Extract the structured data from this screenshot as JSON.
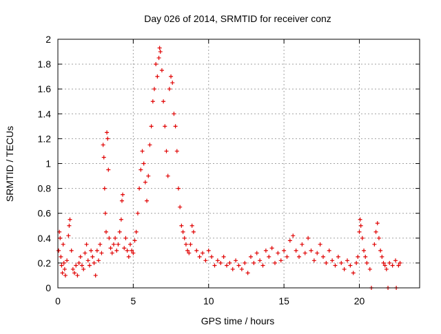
{
  "chart_data": {
    "type": "scatter",
    "title": "Day 026 of 2014, SRMTID for receiver conz",
    "xlabel": "GPS time / hours",
    "ylabel": "SRMTID / TECUs",
    "xlim": [
      0,
      24
    ],
    "ylim": [
      0,
      2
    ],
    "grid": true,
    "marker": "+",
    "color": "#e00000",
    "x_ticks": [
      "0",
      "5",
      "10",
      "15",
      "20"
    ],
    "x_tick_values": [
      0,
      5,
      10,
      15,
      20
    ],
    "y_ticks": [
      "0",
      "0.2",
      "0.4",
      "0.6",
      "0.8",
      "1",
      "1.2",
      "1.4",
      "1.6",
      "1.8",
      "2"
    ],
    "y_tick_values": [
      0,
      0.2,
      0.4,
      0.6,
      0.8,
      1.0,
      1.2,
      1.4,
      1.6,
      1.8,
      2.0
    ],
    "series": [
      {
        "name": "SRMTID",
        "points": [
          [
            0.05,
            0.3
          ],
          [
            0.1,
            0.45
          ],
          [
            0.15,
            0.4
          ],
          [
            0.2,
            0.25
          ],
          [
            0.25,
            0.18
          ],
          [
            0.3,
            0.12
          ],
          [
            0.35,
            0.35
          ],
          [
            0.4,
            0.2
          ],
          [
            0.45,
            0.15
          ],
          [
            0.5,
            0.1
          ],
          [
            0.6,
            0.22
          ],
          [
            0.7,
            0.42
          ],
          [
            0.75,
            0.5
          ],
          [
            0.8,
            0.55
          ],
          [
            0.9,
            0.3
          ],
          [
            1.0,
            0.15
          ],
          [
            1.1,
            0.12
          ],
          [
            1.2,
            0.18
          ],
          [
            1.3,
            0.1
          ],
          [
            1.4,
            0.2
          ],
          [
            1.5,
            0.25
          ],
          [
            1.6,
            0.18
          ],
          [
            1.7,
            0.15
          ],
          [
            1.8,
            0.28
          ],
          [
            1.9,
            0.35
          ],
          [
            2.0,
            0.22
          ],
          [
            2.1,
            0.18
          ],
          [
            2.2,
            0.3
          ],
          [
            2.3,
            0.25
          ],
          [
            2.4,
            0.2
          ],
          [
            2.5,
            0.1
          ],
          [
            2.6,
            0.3
          ],
          [
            2.7,
            0.22
          ],
          [
            2.8,
            0.35
          ],
          [
            2.9,
            0.28
          ],
          [
            3.0,
            1.15
          ],
          [
            3.05,
            1.05
          ],
          [
            3.1,
            0.8
          ],
          [
            3.15,
            0.6
          ],
          [
            3.2,
            0.45
          ],
          [
            3.25,
            1.25
          ],
          [
            3.3,
            1.2
          ],
          [
            3.35,
            0.95
          ],
          [
            3.4,
            0.4
          ],
          [
            3.5,
            0.32
          ],
          [
            3.6,
            0.28
          ],
          [
            3.7,
            0.35
          ],
          [
            3.8,
            0.4
          ],
          [
            3.9,
            0.3
          ],
          [
            4.0,
            0.35
          ],
          [
            4.1,
            0.45
          ],
          [
            4.2,
            0.55
          ],
          [
            4.25,
            0.7
          ],
          [
            4.3,
            0.75
          ],
          [
            4.4,
            0.32
          ],
          [
            4.5,
            0.4
          ],
          [
            4.6,
            0.3
          ],
          [
            4.7,
            0.25
          ],
          [
            4.8,
            0.35
          ],
          [
            4.9,
            0.3
          ],
          [
            5.0,
            0.28
          ],
          [
            5.1,
            0.38
          ],
          [
            5.2,
            0.45
          ],
          [
            5.3,
            0.6
          ],
          [
            5.4,
            0.8
          ],
          [
            5.5,
            0.95
          ],
          [
            5.6,
            1.1
          ],
          [
            5.7,
            1.0
          ],
          [
            5.8,
            0.85
          ],
          [
            5.9,
            0.7
          ],
          [
            6.0,
            0.9
          ],
          [
            6.1,
            1.15
          ],
          [
            6.2,
            1.3
          ],
          [
            6.3,
            1.5
          ],
          [
            6.4,
            1.6
          ],
          [
            6.5,
            1.8
          ],
          [
            6.6,
            1.7
          ],
          [
            6.7,
            1.85
          ],
          [
            6.75,
            1.93
          ],
          [
            6.8,
            1.9
          ],
          [
            6.9,
            1.75
          ],
          [
            7.0,
            1.5
          ],
          [
            7.1,
            1.3
          ],
          [
            7.2,
            1.1
          ],
          [
            7.3,
            0.9
          ],
          [
            7.4,
            1.6
          ],
          [
            7.5,
            1.7
          ],
          [
            7.6,
            1.65
          ],
          [
            7.7,
            1.4
          ],
          [
            7.8,
            1.3
          ],
          [
            7.9,
            1.1
          ],
          [
            8.0,
            0.8
          ],
          [
            8.1,
            0.65
          ],
          [
            8.2,
            0.5
          ],
          [
            8.3,
            0.45
          ],
          [
            8.4,
            0.4
          ],
          [
            8.5,
            0.35
          ],
          [
            8.6,
            0.3
          ],
          [
            8.7,
            0.28
          ],
          [
            8.8,
            0.35
          ],
          [
            8.9,
            0.5
          ],
          [
            9.0,
            0.45
          ],
          [
            9.2,
            0.3
          ],
          [
            9.4,
            0.25
          ],
          [
            9.6,
            0.28
          ],
          [
            9.8,
            0.22
          ],
          [
            10.0,
            0.3
          ],
          [
            10.2,
            0.25
          ],
          [
            10.4,
            0.18
          ],
          [
            10.6,
            0.22
          ],
          [
            10.8,
            0.2
          ],
          [
            11.0,
            0.25
          ],
          [
            11.2,
            0.18
          ],
          [
            11.4,
            0.2
          ],
          [
            11.6,
            0.15
          ],
          [
            11.8,
            0.22
          ],
          [
            12.0,
            0.18
          ],
          [
            12.2,
            0.15
          ],
          [
            12.4,
            0.2
          ],
          [
            12.6,
            0.12
          ],
          [
            12.8,
            0.25
          ],
          [
            13.0,
            0.2
          ],
          [
            13.2,
            0.28
          ],
          [
            13.4,
            0.22
          ],
          [
            13.6,
            0.18
          ],
          [
            13.8,
            0.3
          ],
          [
            14.0,
            0.25
          ],
          [
            14.2,
            0.32
          ],
          [
            14.4,
            0.2
          ],
          [
            14.6,
            0.28
          ],
          [
            14.8,
            0.22
          ],
          [
            15.0,
            0.3
          ],
          [
            15.2,
            0.25
          ],
          [
            15.4,
            0.38
          ],
          [
            15.6,
            0.42
          ],
          [
            15.8,
            0.3
          ],
          [
            16.0,
            0.25
          ],
          [
            16.2,
            0.35
          ],
          [
            16.4,
            0.28
          ],
          [
            16.6,
            0.4
          ],
          [
            16.8,
            0.3
          ],
          [
            17.0,
            0.22
          ],
          [
            17.2,
            0.28
          ],
          [
            17.4,
            0.35
          ],
          [
            17.6,
            0.25
          ],
          [
            17.8,
            0.2
          ],
          [
            18.0,
            0.3
          ],
          [
            18.2,
            0.22
          ],
          [
            18.4,
            0.18
          ],
          [
            18.6,
            0.25
          ],
          [
            18.8,
            0.2
          ],
          [
            19.0,
            0.15
          ],
          [
            19.2,
            0.22
          ],
          [
            19.4,
            0.18
          ],
          [
            19.6,
            0.12
          ],
          [
            19.8,
            0.2
          ],
          [
            19.9,
            0.25
          ],
          [
            20.0,
            0.45
          ],
          [
            20.05,
            0.55
          ],
          [
            20.1,
            0.5
          ],
          [
            20.2,
            0.4
          ],
          [
            20.3,
            0.3
          ],
          [
            20.4,
            0.25
          ],
          [
            20.5,
            0.2
          ],
          [
            20.7,
            0.15
          ],
          [
            20.8,
            0.0
          ],
          [
            21.0,
            0.35
          ],
          [
            21.1,
            0.45
          ],
          [
            21.2,
            0.52
          ],
          [
            21.3,
            0.4
          ],
          [
            21.4,
            0.3
          ],
          [
            21.5,
            0.25
          ],
          [
            21.6,
            0.2
          ],
          [
            21.7,
            0.18
          ],
          [
            21.8,
            0.15
          ],
          [
            21.9,
            0.0
          ],
          [
            22.0,
            0.2
          ],
          [
            22.2,
            0.18
          ],
          [
            22.4,
            0.22
          ],
          [
            22.45,
            0.0
          ],
          [
            22.6,
            0.18
          ],
          [
            22.7,
            0.2
          ]
        ]
      }
    ]
  }
}
